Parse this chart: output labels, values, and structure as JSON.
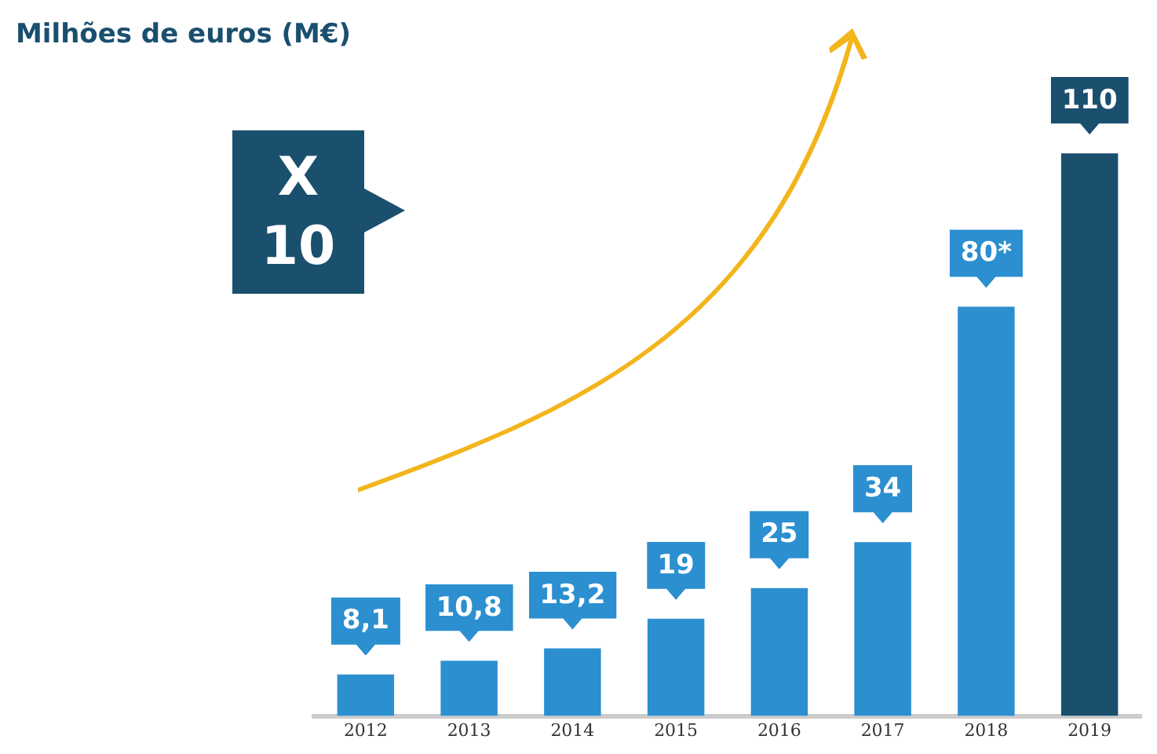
{
  "chart_data": {
    "type": "bar",
    "title": "Milhões de euros (M€)",
    "categories": [
      "2012",
      "2013",
      "2014",
      "2015",
      "2016",
      "2017",
      "2018",
      "2019"
    ],
    "values": [
      8.1,
      10.8,
      13.2,
      19,
      25,
      34,
      80,
      110
    ],
    "colors": [
      "#2b8fd0",
      "#2b8fd0",
      "#2b8fd0",
      "#2b8fd0",
      "#2b8fd0",
      "#2b8fd0",
      "#2b8fd0",
      "#1a4f6e"
    ],
    "value_labels": [
      "8,1",
      "10,8",
      "13,2",
      "19",
      "25",
      "34",
      "80*",
      "110"
    ],
    "annotations": [
      "X 10"
    ],
    "tick_labels": "x",
    "grid": false,
    "legend": false
  }
}
